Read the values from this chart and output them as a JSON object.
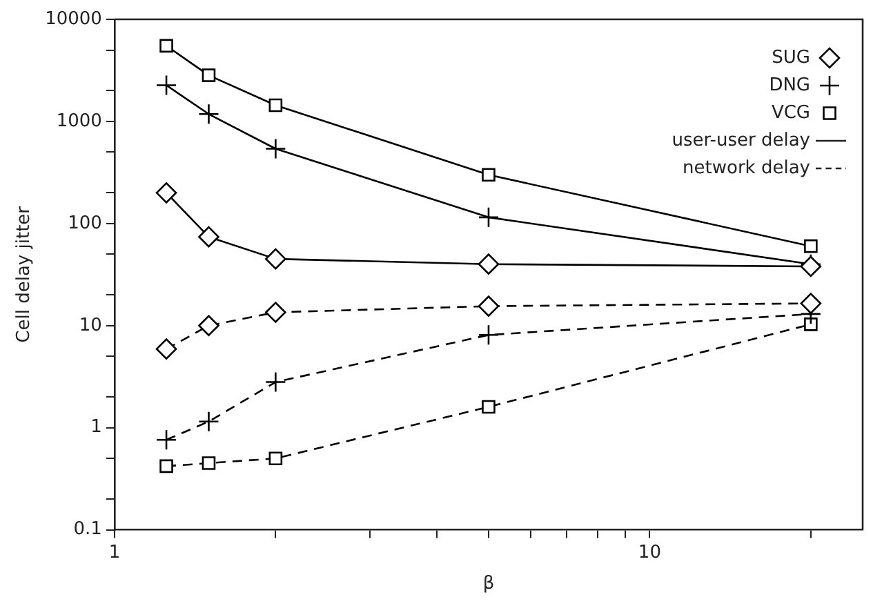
{
  "chart_data": {
    "type": "line",
    "xlabel": "β",
    "ylabel": "Cell delay jitter",
    "log": "xy",
    "x": [
      1.25,
      1.5,
      2,
      5,
      20
    ],
    "xlim": [
      1,
      25
    ],
    "xticks": [
      1,
      {
        "value": 2,
        "label": null
      },
      {
        "value": 3,
        "label": null
      },
      {
        "value": 4,
        "label": null
      },
      {
        "value": 5,
        "label": null
      },
      {
        "value": 6,
        "label": null
      },
      {
        "value": 7,
        "label": null
      },
      {
        "value": 8,
        "label": null
      },
      {
        "value": 9,
        "label": null
      },
      10,
      {
        "value": 20,
        "label": null
      }
    ],
    "ylim": [
      0.1,
      10000
    ],
    "yticks": [
      0.1,
      {
        "value": 0.2,
        "label": null
      },
      {
        "value": 0.5,
        "label": null
      },
      1,
      {
        "value": 2,
        "label": null
      },
      {
        "value": 5,
        "label": null
      },
      10,
      {
        "value": 20,
        "label": null
      },
      {
        "value": 50,
        "label": null
      },
      100,
      {
        "value": 200,
        "label": null
      },
      {
        "value": 500,
        "label": null
      },
      1000,
      {
        "value": 2000,
        "label": null
      },
      {
        "value": 5000,
        "label": null
      },
      10000
    ],
    "grid": false,
    "legend": "top right",
    "series": [
      {
        "name": "SUG",
        "color": "#000000",
        "marker": "diamond",
        "line_style": "solid",
        "values": [
          200,
          74,
          45,
          40,
          38
        ]
      },
      {
        "name": "DNG",
        "color": "#000000",
        "marker": "cross",
        "line_style": "solid",
        "values": [
          2260,
          1180,
          540,
          115,
          40
        ]
      },
      {
        "name": "VCG",
        "color": "#000000",
        "marker": "square",
        "line_style": "solid",
        "values": [
          5500,
          2830,
          1440,
          300,
          60
        ]
      },
      {
        "color": "#000000",
        "marker": "diamond",
        "line_style": "dashed",
        "values": [
          5.9,
          10,
          13.5,
          15.5,
          16.5
        ]
      },
      {
        "color": "#000000",
        "marker": "cross",
        "line_style": "dashed",
        "values": [
          0.76,
          1.15,
          2.8,
          8.1,
          13
        ]
      },
      {
        "color": "#000000",
        "marker": "square",
        "line_style": "dashed",
        "values": [
          0.42,
          0.45,
          0.5,
          1.6,
          10.3
        ]
      }
    ],
    "annotations": [
      "user-user delay",
      "network delay"
    ]
  }
}
